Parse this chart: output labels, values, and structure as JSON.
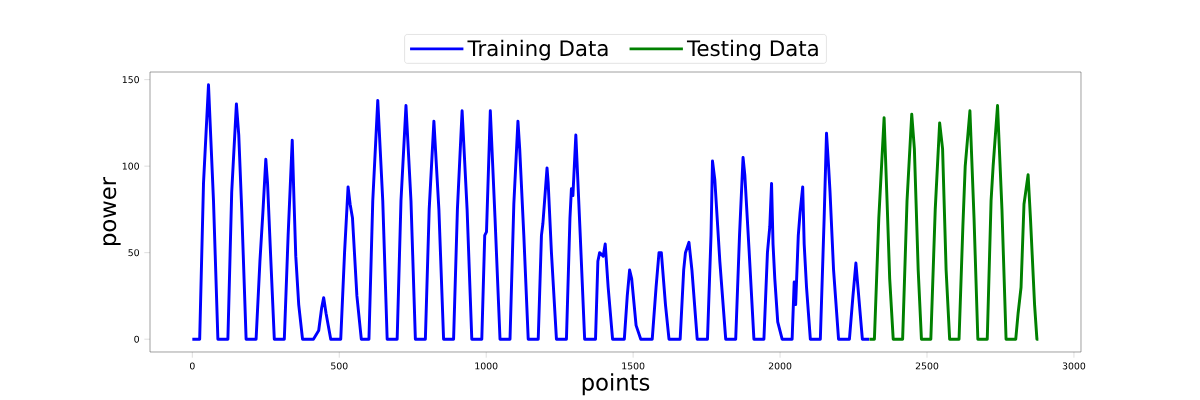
{
  "chart_data": {
    "type": "line",
    "xlabel": "points",
    "ylabel": "power",
    "xlim": [
      -144,
      3024
    ],
    "ylim": [
      -7.4,
      154.4
    ],
    "xticks": [
      0,
      500,
      1000,
      1500,
      2000,
      2500,
      3000
    ],
    "yticks": [
      0,
      50,
      100,
      150
    ],
    "legend": "top",
    "series": [
      {
        "name": "Training Data",
        "color": "#0000ff",
        "x": [
          0,
          25,
          38,
          55,
          72,
          87,
          121,
          134,
          150,
          158,
          168,
          183,
          217,
          230,
          240,
          250,
          256,
          266,
          279,
          313,
          326,
          340,
          346,
          352,
          362,
          375,
          412,
          430,
          440,
          447,
          455,
          471,
          505,
          518,
          530,
          537,
          545,
          560,
          575,
          601,
          614,
          631,
          648,
          663,
          697,
          710,
          727,
          744,
          759,
          793,
          806,
          822,
          839,
          855,
          889,
          902,
          918,
          935,
          951,
          985,
          995,
          1001,
          1014,
          1030,
          1047,
          1081,
          1094,
          1108,
          1114,
          1128,
          1143,
          1177,
          1188,
          1193,
          1207,
          1211,
          1222,
          1239,
          1273,
          1285,
          1290,
          1295,
          1305,
          1320,
          1335,
          1372,
          1380,
          1386,
          1398,
          1405,
          1415,
          1430,
          1470,
          1480,
          1488,
          1495,
          1510,
          1526,
          1565,
          1578,
          1588,
          1596,
          1610,
          1622,
          1660,
          1672,
          1678,
          1690,
          1700,
          1718,
          1753,
          1765,
          1770,
          1778,
          1795,
          1815,
          1849,
          1862,
          1874,
          1880,
          1895,
          1911,
          1945,
          1957,
          1965,
          1971,
          1976,
          1982,
          1992,
          2007,
          2041,
          2048,
          2053,
          2062,
          2068,
          2077,
          2082,
          2090,
          2103,
          2137,
          2150,
          2158,
          2165,
          2170,
          2182,
          2199,
          2236,
          2248,
          2258,
          2265,
          2280,
          2303
        ],
        "values": [
          0,
          0,
          90,
          147,
          80,
          0,
          0,
          85,
          136,
          118,
          75,
          0,
          0,
          45,
          73,
          104,
          90,
          50,
          0,
          0,
          60,
          115,
          80,
          48,
          20,
          0,
          0,
          5,
          18,
          24,
          15,
          0,
          0,
          50,
          88,
          78,
          70,
          25,
          0,
          0,
          80,
          138,
          80,
          0,
          0,
          80,
          135,
          80,
          0,
          0,
          75,
          126,
          75,
          0,
          0,
          75,
          132,
          75,
          0,
          0,
          60,
          62,
          132,
          70,
          0,
          0,
          78,
          126,
          110,
          60,
          0,
          0,
          60,
          67,
          99,
          90,
          50,
          0,
          0,
          70,
          87,
          83,
          118,
          60,
          0,
          0,
          45,
          50,
          48,
          55,
          30,
          0,
          0,
          25,
          40,
          35,
          8,
          0,
          0,
          30,
          50,
          50,
          20,
          0,
          0,
          40,
          50,
          56,
          40,
          0,
          0,
          60,
          103,
          92,
          45,
          0,
          0,
          60,
          105,
          95,
          50,
          0,
          0,
          50,
          65,
          90,
          55,
          35,
          10,
          0,
          0,
          33,
          20,
          60,
          73,
          88,
          55,
          30,
          0,
          0,
          70,
          119,
          100,
          85,
          40,
          0,
          0,
          25,
          44,
          30,
          0,
          0
        ]
      },
      {
        "name": "Testing Data",
        "color": "#008000",
        "x": [
          2304,
          2321,
          2336,
          2354,
          2364,
          2373,
          2385,
          2417,
          2432,
          2448,
          2457,
          2470,
          2481,
          2513,
          2528,
          2543,
          2553,
          2565,
          2577,
          2609,
          2622,
          2630,
          2646,
          2660,
          2673,
          2705,
          2718,
          2725,
          2740,
          2755,
          2769,
          2802,
          2810,
          2820,
          2830,
          2844,
          2852,
          2866,
          2874,
          2879
        ],
        "values": [
          0,
          0,
          70,
          128,
          80,
          35,
          0,
          0,
          80,
          130,
          110,
          40,
          0,
          0,
          75,
          125,
          110,
          40,
          0,
          0,
          65,
          100,
          132,
          70,
          0,
          0,
          80,
          100,
          135,
          75,
          0,
          0,
          15,
          30,
          78,
          95,
          70,
          20,
          0,
          0
        ]
      }
    ]
  }
}
